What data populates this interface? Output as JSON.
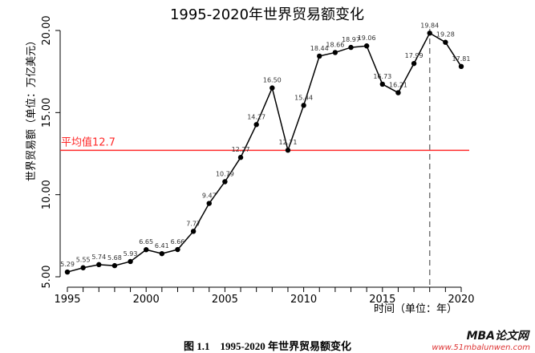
{
  "chart_data": {
    "type": "line",
    "title": "1995-2020年世界贸易额变化",
    "xlabel": "时间（单位：年）",
    "ylabel": "世界贸易额（单位：万亿美元）",
    "x": [
      1995,
      1996,
      1997,
      1998,
      1999,
      2000,
      2001,
      2002,
      2003,
      2004,
      2005,
      2006,
      2007,
      2008,
      2009,
      2010,
      2011,
      2012,
      2013,
      2014,
      2015,
      2016,
      2017,
      2018,
      2019,
      2020
    ],
    "values": [
      5.29,
      5.55,
      5.74,
      5.68,
      5.93,
      6.65,
      6.41,
      6.66,
      7.77,
      9.47,
      10.79,
      12.27,
      14.27,
      16.5,
      12.71,
      15.44,
      18.44,
      18.66,
      18.97,
      19.06,
      16.73,
      16.21,
      17.99,
      19.84,
      19.28,
      17.81
    ],
    "data_labels": [
      "5.29",
      "5.55",
      "5.74",
      "5.68",
      "5.93",
      "6.65",
      "6.41",
      "6.66",
      "7.77",
      "9.47",
      "10.79",
      "12.27",
      "14.27",
      "16.50",
      "12.71",
      "15.44",
      "18.44",
      "18.66",
      "18.97",
      "19.06",
      "16.73",
      "16.21",
      "17.99",
      "19.84",
      "19.28",
      "17.81"
    ],
    "xticks": [
      "1995",
      "2000",
      "2005",
      "2010",
      "2015",
      "2020"
    ],
    "yticks": [
      "5.00",
      "10.00",
      "15.00",
      "20.00"
    ],
    "xlim": [
      1995,
      2020
    ],
    "ylim": [
      5,
      20
    ],
    "mean_line": {
      "value": 12.7,
      "label": "平均值12.7",
      "color": "#ff2a2a"
    },
    "vline": {
      "x": 2018,
      "style": "dashed",
      "color": "#777777"
    },
    "line_color": "#000000",
    "grid": false
  },
  "caption": "图 1.1　1995-2020 年世界贸易额变化",
  "watermark": {
    "brand": "MBA论文网",
    "url": "www.51mbalunwen.com"
  }
}
